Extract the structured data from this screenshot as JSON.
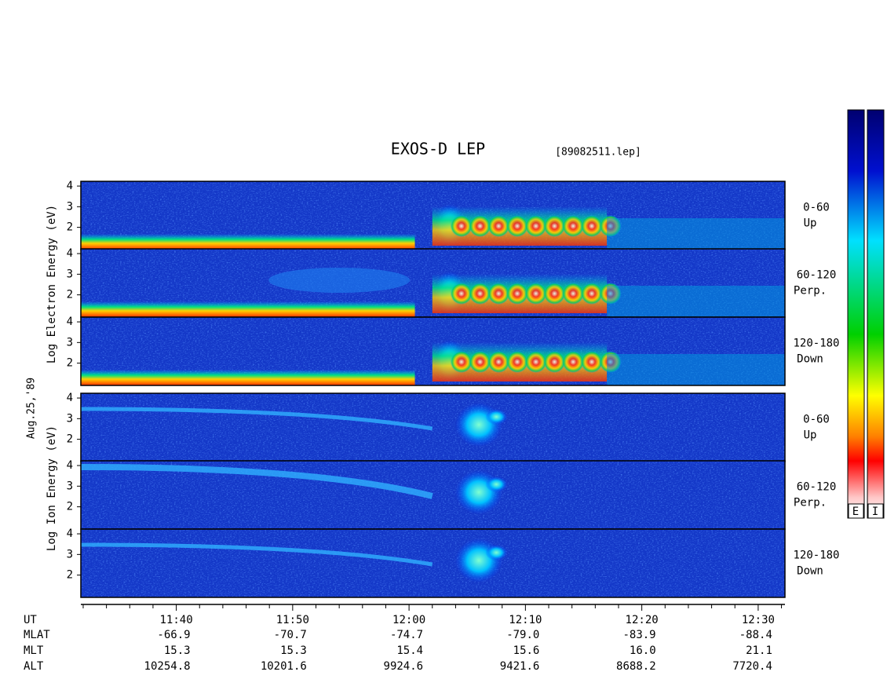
{
  "chart_data": {
    "type": "spectrogram",
    "title": "EXOS-D LEP",
    "file": "[89082511.lep]",
    "date": "Aug.25,'89",
    "ylabels": [
      "Log Electron Energy (eV)",
      "Log Ion Energy (eV)"
    ],
    "panels": [
      {
        "angle": "0-60",
        "direction": "Up"
      },
      {
        "angle": "60-120",
        "direction": "Perp."
      },
      {
        "angle": "120-180",
        "direction": "Down"
      },
      {
        "angle": "0-60",
        "direction": "Up"
      },
      {
        "angle": "60-120",
        "direction": "Perp."
      },
      {
        "angle": "120-180",
        "direction": "Down"
      }
    ],
    "ylim": [
      0.92,
      4.23
    ],
    "yticks": [
      2,
      3,
      4
    ],
    "xlim": [
      691.8,
      752.3
    ],
    "xticks": [
      {
        "value": 700,
        "label": "11:40"
      },
      {
        "value": 710,
        "label": "11:50"
      },
      {
        "value": 720,
        "label": "12:00"
      },
      {
        "value": 730,
        "label": "12:10"
      },
      {
        "value": 740,
        "label": "12:20"
      },
      {
        "value": 750,
        "label": "12:30"
      }
    ],
    "xminor_ticks": [
      692,
      694,
      696,
      698,
      702,
      704,
      706,
      708,
      712,
      714,
      716,
      718,
      722,
      724,
      726,
      728,
      732,
      734,
      736,
      738,
      742,
      744,
      746,
      748,
      752
    ],
    "ut_label": "UT",
    "info_rows": [
      {
        "name": "MLAT",
        "values": [
          "-66.9",
          "-70.7",
          "-74.7",
          "-79.0",
          "-83.9",
          "-88.4"
        ]
      },
      {
        "name": "MLT",
        "values": [
          "15.3",
          "15.3",
          "15.4",
          "15.6",
          "16.0",
          "21.1"
        ]
      },
      {
        "name": "ALT",
        "values": [
          "10254.8",
          "10201.6",
          "9924.6",
          "9421.6",
          "8688.2",
          "7720.4"
        ]
      }
    ],
    "colorbar_labels": [
      "E",
      "I"
    ]
  }
}
